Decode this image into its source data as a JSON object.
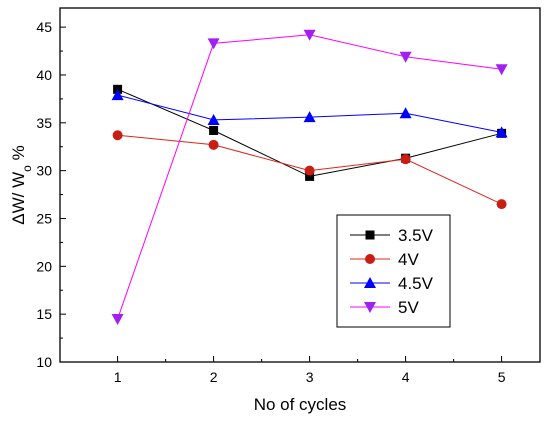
{
  "chart_data": {
    "type": "line",
    "x": [
      1,
      2,
      3,
      4,
      5
    ],
    "xticks": [
      "1",
      "2",
      "3",
      "4",
      "5"
    ],
    "yticks": [
      "10",
      "15",
      "20",
      "25",
      "30",
      "35",
      "40",
      "45"
    ],
    "xlim": [
      0.4,
      5.4
    ],
    "ylim": [
      10,
      47
    ],
    "xlabel": "No of cycles",
    "ylabel": {
      "main": "ΔW/ W",
      "sub": "o",
      "suffix": " %"
    },
    "legend_position": "lower-right inside plot",
    "series": [
      {
        "name": "3.5V",
        "color": "#000000",
        "marker": "square",
        "values": [
          38.5,
          34.2,
          29.4,
          31.3,
          33.9
        ]
      },
      {
        "name": "4V",
        "color": "#e0251b",
        "marker_color": "#c81e14",
        "marker": "circle",
        "values": [
          33.7,
          32.7,
          30.0,
          31.2,
          26.5
        ]
      },
      {
        "name": "4.5V",
        "color": "#0000ff",
        "marker": "triangle-up",
        "values": [
          37.9,
          35.3,
          35.6,
          36.0,
          34.0
        ]
      },
      {
        "name": "5V",
        "color": "#ff00ff",
        "marker_color": "#a020f0",
        "marker": "triangle-down",
        "values": [
          14.5,
          43.3,
          44.2,
          41.9,
          40.6
        ]
      }
    ]
  }
}
